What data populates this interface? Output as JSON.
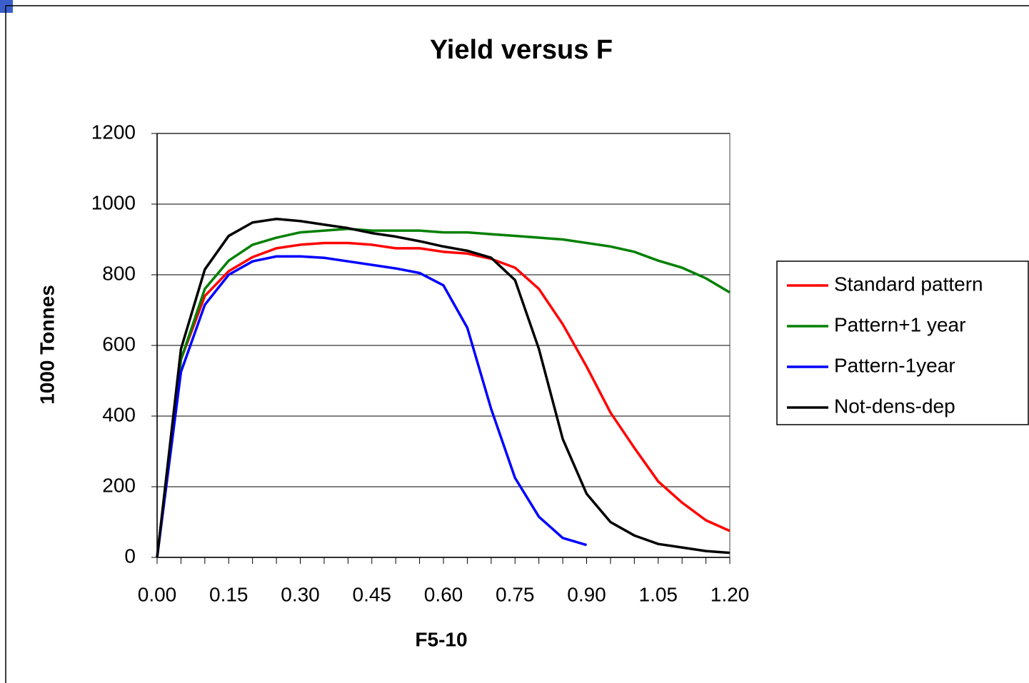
{
  "chart_data": {
    "type": "line",
    "title": "Yield versus F",
    "xlabel": "F5-10",
    "ylabel": "1000 Tonnes",
    "x": [
      0,
      0.05,
      0.1,
      0.15,
      0.2,
      0.25,
      0.3,
      0.35,
      0.4,
      0.45,
      0.5,
      0.55,
      0.6,
      0.65,
      0.7,
      0.75,
      0.8,
      0.85,
      0.9,
      0.95,
      1.0,
      1.05,
      1.1,
      1.15,
      1.2
    ],
    "series": [
      {
        "name": "Standard pattern",
        "color": "#ff0000",
        "values": [
          0,
          560,
          740,
          810,
          850,
          875,
          885,
          890,
          890,
          885,
          875,
          875,
          865,
          860,
          845,
          820,
          760,
          660,
          540,
          410,
          310,
          215,
          155,
          105,
          75
        ]
      },
      {
        "name": "Pattern+1 year",
        "color": "#008000",
        "values": [
          0,
          560,
          760,
          840,
          885,
          905,
          920,
          925,
          930,
          925,
          925,
          925,
          920,
          920,
          915,
          910,
          905,
          900,
          890,
          880,
          865,
          840,
          820,
          790,
          750
        ]
      },
      {
        "name": "Pattern-1year",
        "color": "#0000ff",
        "values": [
          0,
          525,
          715,
          800,
          838,
          852,
          852,
          848,
          838,
          828,
          818,
          805,
          770,
          650,
          420,
          225,
          115,
          55,
          35,
          null,
          null,
          null,
          null,
          null,
          null
        ]
      },
      {
        "name": "Not-dens-dep",
        "color": "#000000",
        "values": [
          0,
          590,
          815,
          910,
          948,
          958,
          952,
          942,
          932,
          918,
          908,
          895,
          880,
          868,
          848,
          785,
          590,
          335,
          180,
          100,
          62,
          38,
          28,
          18,
          13
        ]
      }
    ],
    "xlim": [
      0,
      1.2
    ],
    "xticks": [
      {
        "value": 0,
        "label": "0.00"
      },
      {
        "value": 0.15,
        "label": "0.15"
      },
      {
        "value": 0.3,
        "label": "0.30"
      },
      {
        "value": 0.45,
        "label": "0.45"
      },
      {
        "value": 0.6,
        "label": "0.60"
      },
      {
        "value": 0.75,
        "label": "0.75"
      },
      {
        "value": 0.9,
        "label": "0.90"
      },
      {
        "value": 1.05,
        "label": "1.05"
      },
      {
        "value": 1.2,
        "label": "1.20"
      }
    ],
    "xminorticks": [
      0.05,
      0.1,
      0.2,
      0.25,
      0.35,
      0.4,
      0.5,
      0.55,
      0.65,
      0.7,
      0.8,
      0.85,
      0.95,
      1.0,
      1.1,
      1.15
    ],
    "ylim": [
      0,
      1200
    ],
    "yticks": [
      0,
      200,
      400,
      600,
      800,
      1000,
      1200
    ],
    "grid": true,
    "legend": "right"
  }
}
